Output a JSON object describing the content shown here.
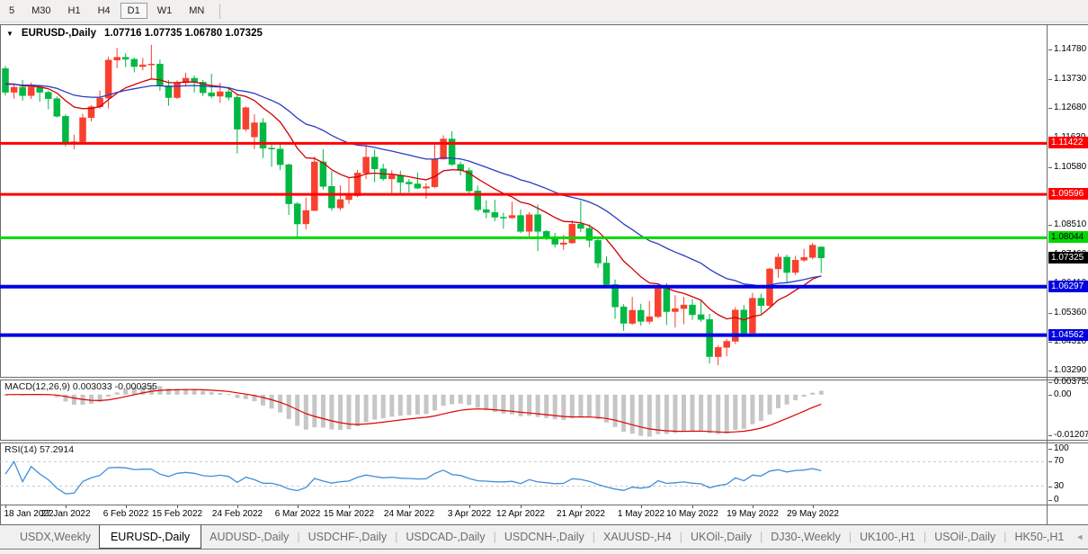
{
  "toolbar": {
    "buttons": [
      {
        "label": "5",
        "active": false
      },
      {
        "label": "M30",
        "active": false
      },
      {
        "label": "H1",
        "active": false
      },
      {
        "label": "H4",
        "active": false
      },
      {
        "label": "D1",
        "active": true
      },
      {
        "label": "W1",
        "active": false
      },
      {
        "label": "MN",
        "active": false
      }
    ]
  },
  "chart": {
    "dropdown_icon": "▼",
    "symbol_period": "EURUSD-,Daily",
    "ohlc_values": "1.07716 1.07735 1.06780 1.07325"
  },
  "chart_data": {
    "type": "candlestick",
    "title": "EURUSD-,Daily",
    "ylim": [
      1.031,
      1.1565
    ],
    "y_ticks": [
      "1.14780",
      "1.13730",
      "1.12680",
      "1.11630",
      "1.10580",
      "1.09530",
      "1.08510",
      "1.07460",
      "1.06410",
      "1.05360",
      "1.04310",
      "1.03290"
    ],
    "x_labels": [
      {
        "text": "18 Jan 2022",
        "bar": 0
      },
      {
        "text": "27 Jan 2022",
        "bar": 7
      },
      {
        "text": "6 Feb 2022",
        "bar": 14
      },
      {
        "text": "15 Feb 2022",
        "bar": 20
      },
      {
        "text": "24 Feb 2022",
        "bar": 27
      },
      {
        "text": "6 Mar 2022",
        "bar": 34
      },
      {
        "text": "15 Mar 2022",
        "bar": 40
      },
      {
        "text": "24 Mar 2022",
        "bar": 47
      },
      {
        "text": "3 Apr 2022",
        "bar": 54
      },
      {
        "text": "12 Apr 2022",
        "bar": 60
      },
      {
        "text": "21 Apr 2022",
        "bar": 67
      },
      {
        "text": "1 May 2022",
        "bar": 74
      },
      {
        "text": "10 May 2022",
        "bar": 80
      },
      {
        "text": "19 May 2022",
        "bar": 87
      },
      {
        "text": "29 May 2022",
        "bar": 94
      }
    ],
    "levels": [
      {
        "price": 1.11422,
        "label": "1.11422",
        "color": "#ff0000",
        "text_color": "#ffffff",
        "width": 3,
        "line": true
      },
      {
        "price": 1.09596,
        "label": "1.09596",
        "color": "#ff0000",
        "text_color": "#ffffff",
        "width": 3,
        "line": true
      },
      {
        "price": 1.08044,
        "label": "1.08044",
        "color": "#00d800",
        "text_color": "#000000",
        "width": 3,
        "line": true
      },
      {
        "price": 1.07325,
        "label": "1.07325",
        "color": "#000000",
        "text_color": "#ffffff",
        "width": 0,
        "line": false
      },
      {
        "price": 1.06297,
        "label": "1.06297",
        "color": "#0000e0",
        "text_color": "#ffffff",
        "width": 4,
        "line": true
      },
      {
        "price": 1.04562,
        "label": "1.04562",
        "color": "#0000e0",
        "text_color": "#ffffff",
        "width": 4,
        "line": true
      }
    ],
    "colors": {
      "up": "#f8402f",
      "down": "#00b843",
      "ma_fast": "#d20000",
      "ma_slow": "#2a3cc0",
      "macd_hist": "#c6c6c6",
      "macd_signal": "#e00000",
      "rsi": "#3f8ed8"
    },
    "ma": [
      {
        "period": 12,
        "seed": 1.1362,
        "color": "#d20000"
      },
      {
        "period": 30,
        "seed": 1.1356,
        "color": "#2a3cc0"
      }
    ],
    "macd": {
      "label": "MACD(12,26,9) 0.003033 -0.000355",
      "fast": 12,
      "slow": 26,
      "signal": 9,
      "main_value": 0.003033,
      "signal_value": -0.000355,
      "ylim": [
        -0.0133,
        0.0042
      ],
      "axis_labels": [
        {
          "text": "0.003753",
          "v": 0.003753
        },
        {
          "text": "0.00",
          "v": 0
        },
        {
          "text": "-0.012075",
          "v": -0.012075
        }
      ]
    },
    "rsi": {
      "label": "RSI(14) 57.2914",
      "period": 14,
      "value": 57.2914,
      "levels": [
        70,
        30
      ],
      "axis_labels": [
        {
          "text": "100",
          "v": 100
        },
        {
          "text": "70",
          "v": 70
        },
        {
          "text": "30",
          "v": 30
        },
        {
          "text": "0",
          "v": 0
        }
      ]
    },
    "candles": [
      [
        1.141,
        1.1419,
        1.1313,
        1.1325
      ],
      [
        1.1325,
        1.1357,
        1.1302,
        1.1343
      ],
      [
        1.1343,
        1.1369,
        1.1295,
        1.1313
      ],
      [
        1.1313,
        1.136,
        1.1301,
        1.1344
      ],
      [
        1.1344,
        1.1349,
        1.1291,
        1.1325
      ],
      [
        1.1325,
        1.1331,
        1.1264,
        1.1302
      ],
      [
        1.1302,
        1.131,
        1.1235,
        1.1239
      ],
      [
        1.1239,
        1.1246,
        1.1131,
        1.1144
      ],
      [
        1.1144,
        1.1173,
        1.1121,
        1.1148
      ],
      [
        1.1148,
        1.1248,
        1.1141,
        1.1234
      ],
      [
        1.1234,
        1.1279,
        1.1221,
        1.1273
      ],
      [
        1.1273,
        1.1331,
        1.1266,
        1.1304
      ],
      [
        1.1304,
        1.1452,
        1.1267,
        1.144
      ],
      [
        1.144,
        1.1483,
        1.1411,
        1.145
      ],
      [
        1.145,
        1.1465,
        1.1415,
        1.1443
      ],
      [
        1.1443,
        1.1449,
        1.1396,
        1.1417
      ],
      [
        1.1417,
        1.1448,
        1.1403,
        1.1423
      ],
      [
        1.1423,
        1.1495,
        1.1375,
        1.1426
      ],
      [
        1.1426,
        1.1442,
        1.133,
        1.1348
      ],
      [
        1.1348,
        1.1369,
        1.1277,
        1.1306
      ],
      [
        1.1306,
        1.1368,
        1.1301,
        1.1359
      ],
      [
        1.1359,
        1.1395,
        1.1345,
        1.1375
      ],
      [
        1.1375,
        1.1385,
        1.1324,
        1.1361
      ],
      [
        1.1361,
        1.1369,
        1.1312,
        1.1323
      ],
      [
        1.1323,
        1.1391,
        1.1303,
        1.1311
      ],
      [
        1.1311,
        1.1359,
        1.1287,
        1.1327
      ],
      [
        1.1327,
        1.1342,
        1.1296,
        1.1307
      ],
      [
        1.1307,
        1.1317,
        1.1106,
        1.1193
      ],
      [
        1.1193,
        1.1274,
        1.1184,
        1.127
      ],
      [
        1.1165,
        1.1246,
        1.1122,
        1.1216
      ],
      [
        1.1216,
        1.1232,
        1.109,
        1.1125
      ],
      [
        1.1125,
        1.1145,
        1.1058,
        1.1122
      ],
      [
        1.1122,
        1.1139,
        1.1046,
        1.1066
      ],
      [
        1.1066,
        1.107,
        1.0886,
        1.0926
      ],
      [
        1.0926,
        1.0932,
        1.0806,
        1.0854
      ],
      [
        1.0854,
        1.0948,
        1.0834,
        1.0902
      ],
      [
        1.0902,
        1.1095,
        1.09,
        1.1076
      ],
      [
        1.1076,
        1.1121,
        1.0977,
        1.0988
      ],
      [
        1.0988,
        1.1043,
        1.0901,
        1.0911
      ],
      [
        1.0911,
        1.0992,
        1.0902,
        1.0941
      ],
      [
        1.0941,
        1.102,
        1.0926,
        1.0955
      ],
      [
        1.0955,
        1.1047,
        1.0949,
        1.1036
      ],
      [
        1.1036,
        1.1137,
        1.1014,
        1.1093
      ],
      [
        1.1093,
        1.112,
        1.1003,
        1.1051
      ],
      [
        1.1051,
        1.1069,
        1.1008,
        1.1015
      ],
      [
        1.1015,
        1.1046,
        1.0961,
        1.1028
      ],
      [
        1.1028,
        1.1044,
        1.0963,
        1.1003
      ],
      [
        1.1003,
        1.1014,
        1.0966,
        1.0997
      ],
      [
        1.0997,
        1.1038,
        1.0979,
        1.0982
      ],
      [
        1.0982,
        1.1,
        1.0944,
        1.0987
      ],
      [
        1.0987,
        1.1137,
        1.0982,
        1.1086
      ],
      [
        1.1086,
        1.1171,
        1.1084,
        1.1158
      ],
      [
        1.1158,
        1.1185,
        1.1061,
        1.1067
      ],
      [
        1.1067,
        1.1077,
        1.1028,
        1.1045
      ],
      [
        1.1045,
        1.1055,
        1.096,
        1.0972
      ],
      [
        1.0972,
        1.0991,
        1.0899,
        1.0905
      ],
      [
        1.0905,
        1.0938,
        1.0874,
        1.0895
      ],
      [
        1.0895,
        1.094,
        1.0864,
        1.0878
      ],
      [
        1.0878,
        1.0894,
        1.0837,
        1.0876
      ],
      [
        1.0876,
        1.0933,
        1.0871,
        1.0884
      ],
      [
        1.0884,
        1.0905,
        1.0821,
        1.0827
      ],
      [
        1.0827,
        1.0896,
        1.0809,
        1.0887
      ],
      [
        1.0887,
        1.0923,
        1.0757,
        1.0827
      ],
      [
        1.0827,
        1.0832,
        1.0796,
        1.0808
      ],
      [
        1.0808,
        1.0822,
        1.077,
        1.0781
      ],
      [
        1.0781,
        1.0815,
        1.0761,
        1.0786
      ],
      [
        1.0786,
        1.0867,
        1.0783,
        1.0853
      ],
      [
        1.0853,
        1.0936,
        1.0824,
        1.0838
      ],
      [
        1.0838,
        1.0852,
        1.077,
        1.0795
      ],
      [
        1.0795,
        1.0801,
        1.0697,
        1.0714
      ],
      [
        1.0714,
        1.0738,
        1.0635,
        1.0637
      ],
      [
        1.0637,
        1.0655,
        1.0514,
        1.0557
      ],
      [
        1.0557,
        1.0567,
        1.0471,
        1.0498
      ],
      [
        1.0498,
        1.0593,
        1.0492,
        1.0545
      ],
      [
        1.0545,
        1.0568,
        1.049,
        1.0505
      ],
      [
        1.0505,
        1.0578,
        1.0495,
        1.0522
      ],
      [
        1.0522,
        1.0632,
        1.0517,
        1.0622
      ],
      [
        1.0622,
        1.0642,
        1.0492,
        1.054
      ],
      [
        1.054,
        1.0599,
        1.0483,
        1.0551
      ],
      [
        1.0551,
        1.0593,
        1.0495,
        1.0564
      ],
      [
        1.0564,
        1.0585,
        1.0511,
        1.0529
      ],
      [
        1.0529,
        1.0579,
        1.0503,
        1.0512
      ],
      [
        1.0512,
        1.0532,
        1.0354,
        1.0379
      ],
      [
        1.0379,
        1.042,
        1.0348,
        1.0412
      ],
      [
        1.0412,
        1.0443,
        1.038,
        1.0434
      ],
      [
        1.0434,
        1.0556,
        1.0424,
        1.0546
      ],
      [
        1.0546,
        1.0564,
        1.0459,
        1.0464
      ],
      [
        1.0464,
        1.0607,
        1.0462,
        1.0588
      ],
      [
        1.0588,
        1.0604,
        1.0533,
        1.0562
      ],
      [
        1.0562,
        1.0697,
        1.0556,
        1.0693
      ],
      [
        1.0693,
        1.0748,
        1.0661,
        1.0735
      ],
      [
        1.0735,
        1.0744,
        1.0642,
        1.068
      ],
      [
        1.068,
        1.074,
        1.0671,
        1.0724
      ],
      [
        1.0724,
        1.0765,
        1.0718,
        1.0734
      ],
      [
        1.0734,
        1.0786,
        1.0727,
        1.0778
      ],
      [
        1.07716,
        1.07735,
        1.0678,
        1.07325
      ]
    ]
  },
  "tabs": {
    "items": [
      {
        "label": "USDX,Weekly",
        "active": false
      },
      {
        "label": "EURUSD-,Daily",
        "active": true
      },
      {
        "label": "AUDUSD-,Daily",
        "active": false
      },
      {
        "label": "USDCHF-,Daily",
        "active": false
      },
      {
        "label": "USDCAD-,Daily",
        "active": false
      },
      {
        "label": "USDCNH-,Daily",
        "active": false
      },
      {
        "label": "XAUUSD-,H4",
        "active": false
      },
      {
        "label": "UKOil-,Daily",
        "active": false
      },
      {
        "label": "DJ30-,Weekly",
        "active": false
      },
      {
        "label": "UK100-,H1",
        "active": false
      },
      {
        "label": "USOil-,Daily",
        "active": false
      },
      {
        "label": "HK50-,H1",
        "active": false
      }
    ],
    "scroll_left_icon": "◄",
    "scroll_right_icon": "►"
  }
}
